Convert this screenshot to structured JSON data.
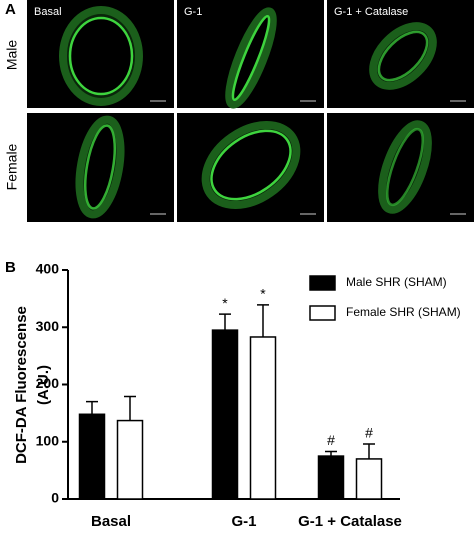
{
  "panel_a": {
    "letter": "A",
    "rows": [
      "Male",
      "Female"
    ],
    "columns": [
      "Basal",
      "G-1",
      "G-1 + Catalase"
    ]
  },
  "panel_b": {
    "letter": "B"
  },
  "chart_data": {
    "type": "bar",
    "y_label": "DCF-DA Fluorescense",
    "y_label_unit": "(A.U.)",
    "categories": [
      "Basal",
      "G-1",
      "G-1 + Catalase"
    ],
    "series": [
      {
        "name": "Male SHR (SHAM)",
        "color": "#000000",
        "values": [
          148,
          295,
          75
        ],
        "errors": [
          22,
          28,
          8
        ],
        "annotations": [
          null,
          "*",
          "#"
        ]
      },
      {
        "name": "Female SHR (SHAM)",
        "color": "#ffffff",
        "values": [
          137,
          283,
          70
        ],
        "errors": [
          42,
          56,
          26
        ],
        "annotations": [
          null,
          "*",
          "#"
        ]
      }
    ],
    "ylim": [
      0,
      400
    ],
    "yticks": [
      0,
      100,
      200,
      300,
      400
    ],
    "grid": false,
    "legend": "upper right"
  }
}
